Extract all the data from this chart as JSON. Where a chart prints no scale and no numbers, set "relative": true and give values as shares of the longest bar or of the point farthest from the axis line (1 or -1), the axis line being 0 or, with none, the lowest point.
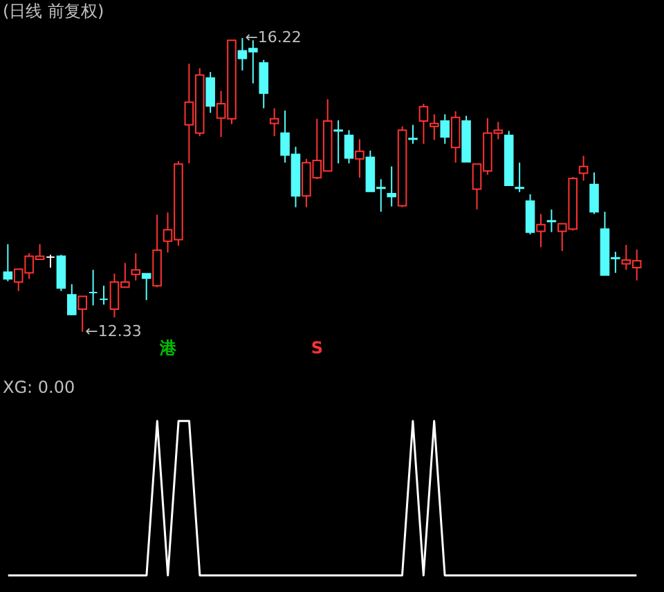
{
  "chart_data": [
    {
      "type": "candlestick",
      "title": "(日线 前复权)",
      "categories": [
        null,
        null,
        null,
        null,
        null,
        null,
        null,
        null,
        null,
        null,
        null,
        null,
        null,
        null,
        null,
        null,
        null,
        null,
        null,
        null,
        null,
        null,
        null,
        null,
        null,
        null,
        null,
        null,
        null,
        null,
        null,
        null,
        null,
        null,
        null,
        null,
        null,
        null,
        null,
        null,
        null,
        null,
        null,
        null,
        null,
        null,
        null,
        null,
        null,
        null,
        null,
        null,
        null,
        null,
        null,
        null,
        null,
        null,
        null,
        null
      ],
      "ohlc": [
        [
          13.12,
          13.49,
          13.0,
          13.03
        ],
        [
          12.99,
          13.16,
          12.87,
          13.16
        ],
        [
          13.11,
          13.37,
          13.03,
          13.33
        ],
        [
          13.29,
          13.49,
          13.28,
          13.33
        ],
        [
          13.32,
          13.35,
          13.18,
          13.32
        ],
        [
          13.33,
          13.35,
          12.87,
          12.91
        ],
        [
          12.82,
          12.96,
          12.55,
          12.56
        ],
        [
          12.63,
          12.8,
          12.33,
          12.8
        ],
        [
          12.85,
          13.15,
          12.68,
          12.85
        ],
        [
          12.76,
          12.94,
          12.69,
          12.76
        ],
        [
          12.63,
          13.1,
          12.52,
          12.99
        ],
        [
          12.92,
          13.24,
          12.92,
          12.99
        ],
        [
          13.09,
          13.37,
          13.01,
          13.15
        ],
        [
          13.1,
          13.1,
          12.75,
          13.04
        ],
        [
          12.94,
          13.88,
          12.92,
          13.41
        ],
        [
          13.53,
          13.91,
          13.38,
          13.68
        ],
        [
          13.55,
          14.59,
          13.47,
          14.55
        ],
        [
          15.07,
          15.88,
          14.56,
          15.37
        ],
        [
          14.96,
          15.82,
          14.92,
          15.73
        ],
        [
          15.69,
          15.77,
          15.23,
          15.32
        ],
        [
          15.16,
          15.52,
          14.91,
          15.35
        ],
        [
          15.15,
          16.19,
          15.08,
          16.19
        ],
        [
          16.05,
          16.22,
          15.79,
          15.95
        ],
        [
          16.08,
          16.19,
          15.62,
          16.04
        ],
        [
          15.89,
          15.93,
          15.29,
          15.49
        ],
        [
          15.09,
          15.29,
          14.92,
          15.15
        ],
        [
          14.96,
          15.26,
          14.57,
          14.67
        ],
        [
          14.68,
          14.78,
          13.98,
          14.13
        ],
        [
          14.13,
          14.62,
          13.98,
          14.57
        ],
        [
          14.37,
          15.15,
          14.35,
          14.6
        ],
        [
          14.46,
          15.41,
          14.46,
          15.12
        ],
        [
          15.0,
          15.13,
          14.56,
          14.99
        ],
        [
          14.93,
          15.0,
          14.56,
          14.63
        ],
        [
          14.62,
          14.88,
          14.37,
          14.72
        ],
        [
          14.64,
          14.73,
          14.19,
          14.19
        ],
        [
          14.24,
          14.35,
          13.92,
          14.23
        ],
        [
          14.16,
          14.52,
          13.99,
          14.12
        ],
        [
          14.0,
          15.05,
          13.98,
          15.0
        ],
        [
          14.89,
          15.07,
          14.82,
          14.88
        ],
        [
          15.12,
          15.35,
          14.82,
          15.31
        ],
        [
          15.05,
          15.21,
          14.87,
          15.09
        ],
        [
          15.12,
          15.21,
          14.82,
          14.91
        ],
        [
          14.77,
          15.25,
          14.57,
          15.17
        ],
        [
          15.12,
          15.19,
          14.58,
          14.58
        ],
        [
          14.22,
          14.55,
          13.95,
          14.55
        ],
        [
          14.46,
          15.16,
          14.41,
          14.96
        ],
        [
          14.96,
          15.11,
          14.88,
          15.0
        ],
        [
          14.93,
          14.99,
          14.27,
          14.27
        ],
        [
          14.24,
          14.57,
          14.18,
          14.23
        ],
        [
          14.06,
          14.15,
          13.62,
          13.65
        ],
        [
          13.66,
          13.89,
          13.45,
          13.75
        ],
        [
          13.8,
          13.95,
          13.65,
          13.79
        ],
        [
          13.66,
          13.76,
          13.4,
          13.76
        ],
        [
          13.69,
          14.38,
          13.67,
          14.36
        ],
        [
          14.43,
          14.66,
          14.33,
          14.52
        ],
        [
          14.28,
          14.44,
          13.89,
          13.92
        ],
        [
          13.69,
          13.92,
          13.08,
          13.08
        ],
        [
          13.31,
          13.39,
          13.11,
          13.3
        ],
        [
          13.23,
          13.48,
          13.15,
          13.28
        ],
        [
          13.18,
          13.42,
          13.01,
          13.27
        ]
      ],
      "colors": [
        "#54fcfc",
        "#ff3232",
        "#ff3232",
        "#ff3232",
        "#ffffff",
        "#54fcfc",
        "#54fcfc",
        "#ff3232",
        "#54fcfc",
        "#54fcfc",
        "#ff3232",
        "#ff3232",
        "#ff3232",
        "#54fcfc",
        "#ff3232",
        "#ff3232",
        "#ff3232",
        "#ff3232",
        "#ff3232",
        "#54fcfc",
        "#ff3232",
        "#ff3232",
        "#54fcfc",
        "#54fcfc",
        "#54fcfc",
        "#ff3232",
        "#54fcfc",
        "#54fcfc",
        "#ff3232",
        "#ff3232",
        "#ff3232",
        "#54fcfc",
        "#54fcfc",
        "#ff3232",
        "#54fcfc",
        "#54fcfc",
        "#54fcfc",
        "#ff3232",
        "#54fcfc",
        "#ff3232",
        "#ff3232",
        "#54fcfc",
        "#ff3232",
        "#54fcfc",
        "#ff3232",
        "#ff3232",
        "#ff3232",
        "#54fcfc",
        "#54fcfc",
        "#54fcfc",
        "#ff3232",
        "#54fcfc",
        "#ff3232",
        "#ff3232",
        "#ff3232",
        "#54fcfc",
        "#54fcfc",
        "#54fcfc",
        "#ff3232",
        "#ff3232"
      ],
      "annotations": [
        "←16.22",
        "←12.33",
        "港",
        "S"
      ]
    },
    {
      "type": "line",
      "title": "XG: 0.00",
      "relative": true,
      "categories": [
        null,
        null,
        null,
        null,
        null,
        null,
        null,
        null,
        null,
        null,
        null,
        null,
        null,
        null,
        null,
        null,
        null,
        null,
        null,
        null,
        null,
        null,
        null,
        null,
        null,
        null,
        null,
        null,
        null,
        null,
        null,
        null,
        null,
        null,
        null,
        null,
        null,
        null,
        null,
        null,
        null,
        null,
        null,
        null,
        null,
        null,
        null,
        null,
        null,
        null,
        null,
        null,
        null,
        null,
        null,
        null,
        null,
        null,
        null,
        null
      ],
      "series": [
        {
          "color": "#ffffff",
          "values": [
            0,
            0,
            0,
            0,
            0,
            0,
            0,
            0,
            0,
            0,
            0,
            0,
            0,
            0,
            1,
            0,
            1,
            1,
            0,
            0,
            0,
            0,
            0,
            0,
            0,
            0,
            0,
            0,
            0,
            0,
            0,
            0,
            0,
            0,
            0,
            0,
            0,
            0,
            1,
            0,
            1,
            0,
            0,
            0,
            0,
            0,
            0,
            0,
            0,
            0,
            0,
            0,
            0,
            0,
            0,
            0,
            0,
            0,
            0,
            0
          ]
        }
      ]
    }
  ]
}
